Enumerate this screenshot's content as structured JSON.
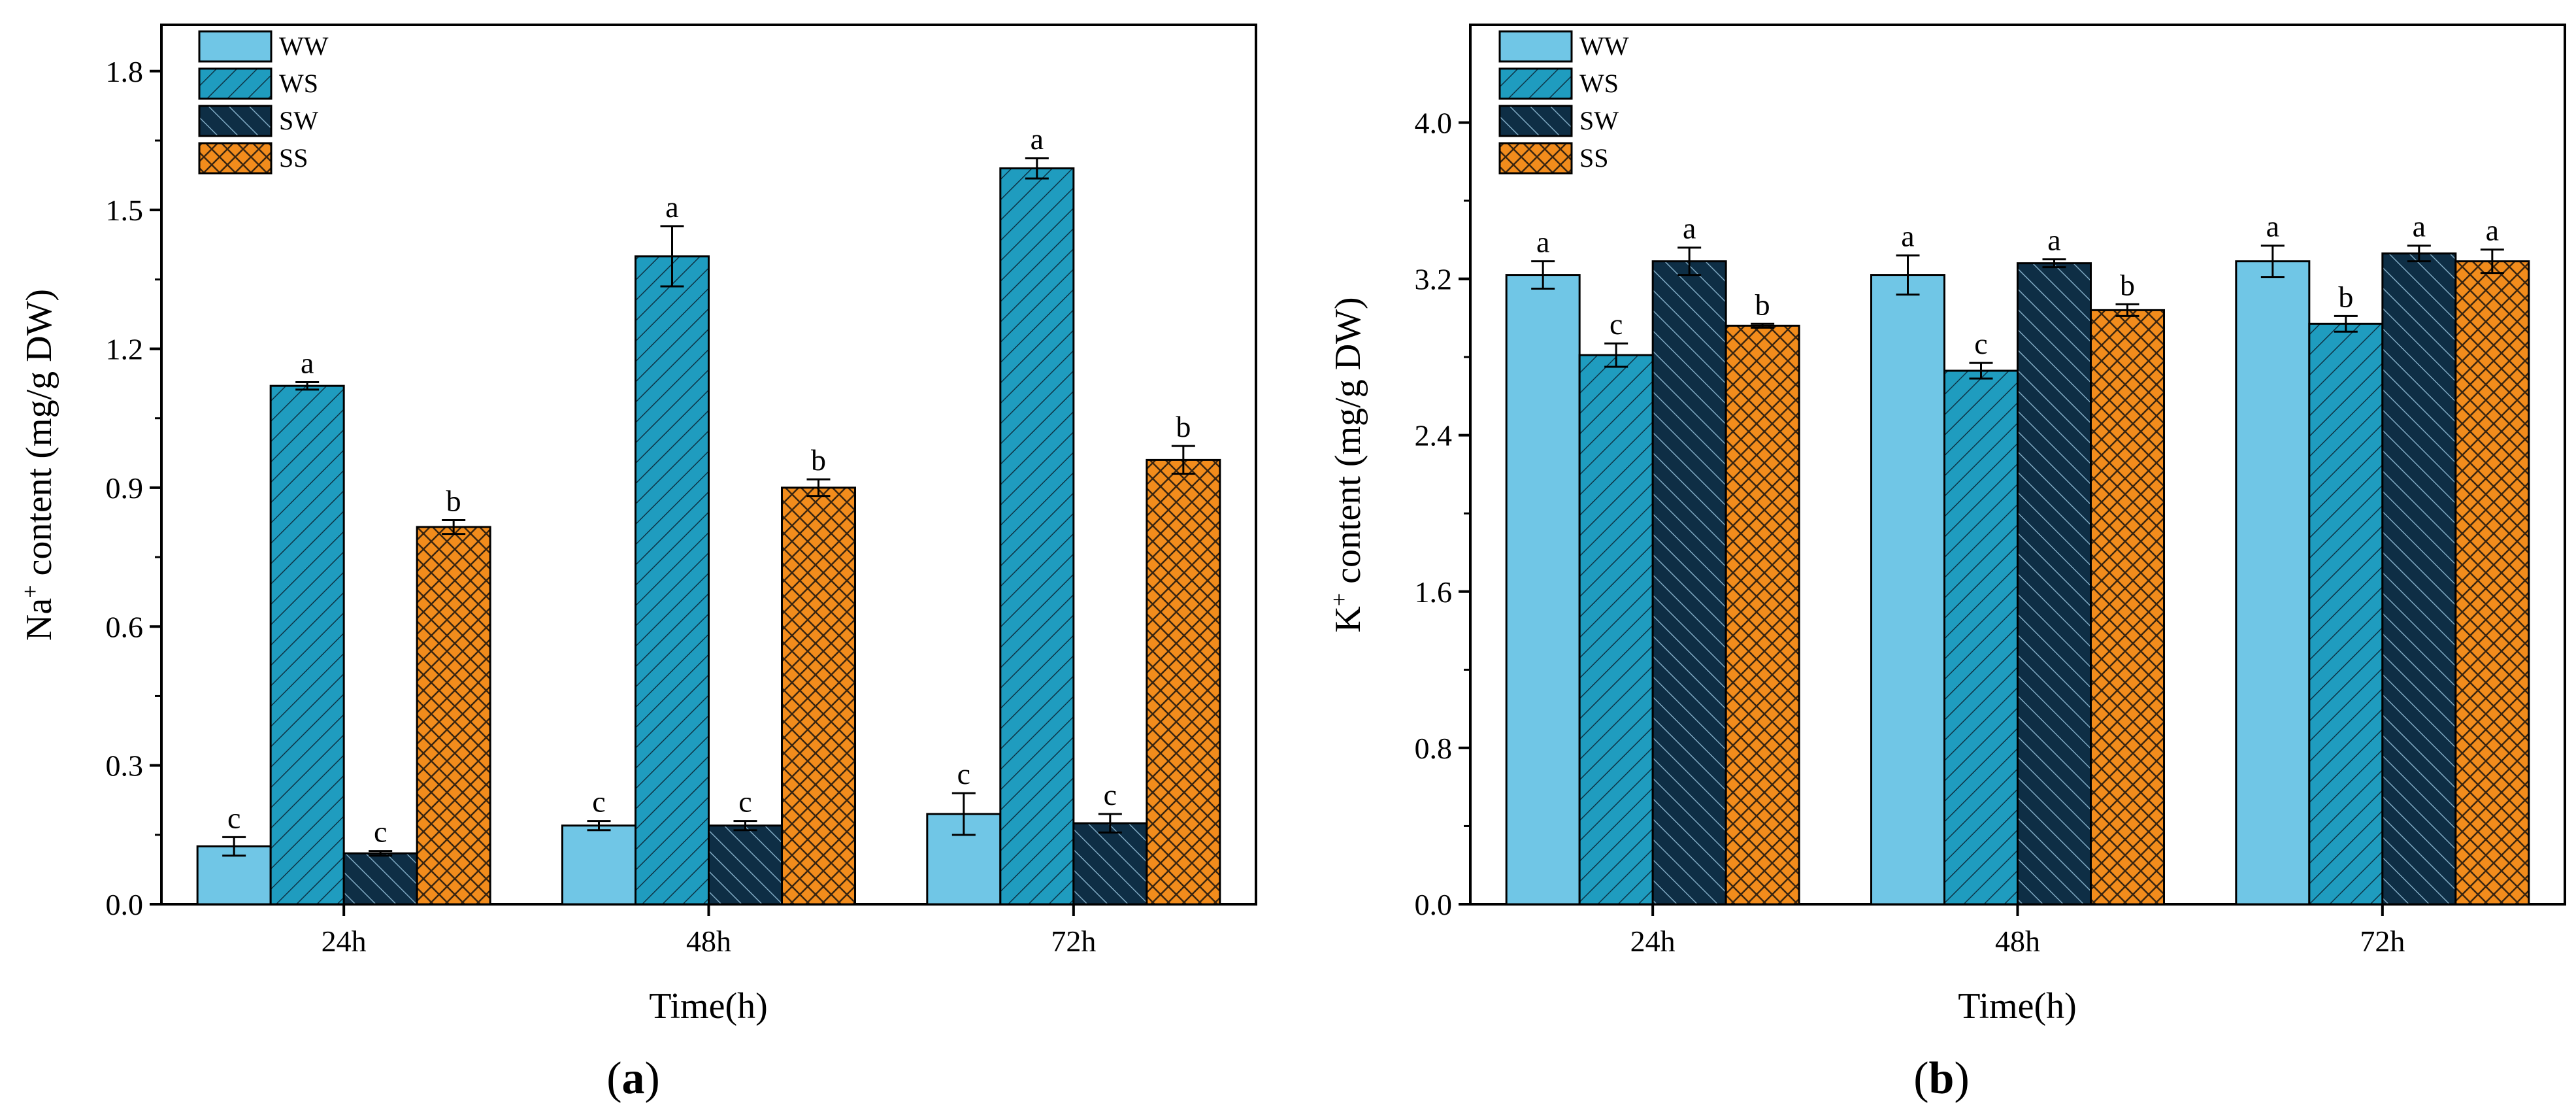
{
  "colors": {
    "WW": "#70c6e6",
    "WS": "#1f9cbf",
    "SW": "#0e2e45",
    "SS": "#f28c1c",
    "hatch_light": "#1a3a4a",
    "hatch_dark": "#8fb3c8",
    "axis": "#000000"
  },
  "chart_data": [
    {
      "id": "a",
      "type": "bar",
      "panel_label": "a",
      "xlabel": "Time(h)",
      "ylabel_main": "Na",
      "ylabel_sup": "+",
      "ylabel_rest": " content (mg/g DW)",
      "categories": [
        "24h",
        "48h",
        "72h"
      ],
      "ylim": [
        0,
        1.9
      ],
      "yticks": [
        0.0,
        0.3,
        0.6,
        0.9,
        1.2,
        1.5,
        1.8
      ],
      "ytick_labels": [
        "0.0",
        "0.3",
        "0.6",
        "0.9",
        "1.2",
        "1.5",
        "1.8"
      ],
      "legend_position": "top-left",
      "series": [
        {
          "name": "WW",
          "values": [
            0.125,
            0.17,
            0.195
          ],
          "errors": [
            0.02,
            0.01,
            0.045
          ],
          "letters": [
            "c",
            "c",
            "c"
          ]
        },
        {
          "name": "WS",
          "values": [
            1.12,
            1.4,
            1.59
          ],
          "errors": [
            0.008,
            0.065,
            0.022
          ],
          "letters": [
            "a",
            "a",
            "a"
          ]
        },
        {
          "name": "SW",
          "values": [
            0.11,
            0.17,
            0.175
          ],
          "errors": [
            0.005,
            0.01,
            0.02
          ],
          "letters": [
            "c",
            "c",
            "c"
          ]
        },
        {
          "name": "SS",
          "values": [
            0.815,
            0.9,
            0.96
          ],
          "errors": [
            0.015,
            0.018,
            0.03
          ],
          "letters": [
            "b",
            "b",
            "b"
          ]
        }
      ]
    },
    {
      "id": "b",
      "type": "bar",
      "panel_label": "b",
      "xlabel": "Time(h)",
      "ylabel_main": "K",
      "ylabel_sup": "+",
      "ylabel_rest": " content (mg/g DW)",
      "categories": [
        "24h",
        "48h",
        "72h"
      ],
      "ylim": [
        0,
        4.5
      ],
      "yticks": [
        0.0,
        0.8,
        1.6,
        2.4,
        3.2,
        4.0
      ],
      "ytick_labels": [
        "0.0",
        "0.8",
        "1.6",
        "2.4",
        "3.2",
        "4.0"
      ],
      "legend_position": "top-left",
      "series": [
        {
          "name": "WW",
          "values": [
            3.22,
            3.22,
            3.29
          ],
          "errors": [
            0.07,
            0.1,
            0.08
          ],
          "letters": [
            "a",
            "a",
            "a"
          ]
        },
        {
          "name": "WS",
          "values": [
            2.81,
            2.73,
            2.97
          ],
          "errors": [
            0.06,
            0.04,
            0.04
          ],
          "letters": [
            "c",
            "c",
            "b"
          ]
        },
        {
          "name": "SW",
          "values": [
            3.29,
            3.28,
            3.33
          ],
          "errors": [
            0.07,
            0.02,
            0.04
          ],
          "letters": [
            "a",
            "a",
            "a"
          ]
        },
        {
          "name": "SS",
          "values": [
            2.96,
            3.04,
            3.29
          ],
          "errors": [
            0.01,
            0.03,
            0.06
          ],
          "letters": [
            "b",
            "b",
            "a"
          ]
        }
      ]
    }
  ]
}
